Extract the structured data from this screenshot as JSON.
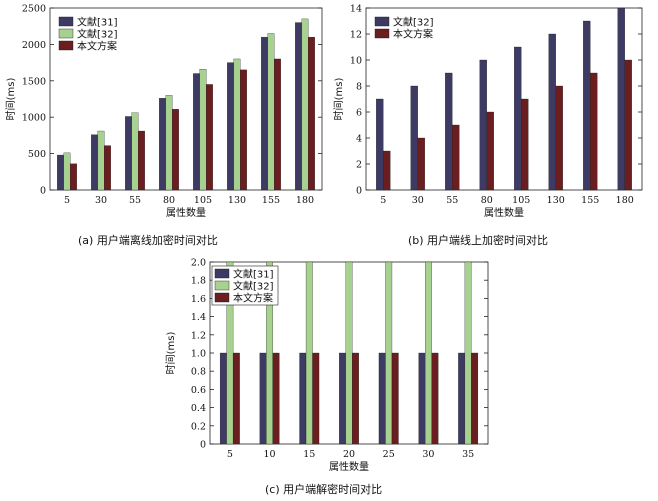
{
  "colors": {
    "ref31": "#3d3a63",
    "ref32": "#a6d18f",
    "ours": "#6b1e1f"
  },
  "chart_data": [
    {
      "id": "a",
      "type": "bar",
      "caption": "(a) 用户端离线加密时间对比",
      "xlabel": "属性数量",
      "ylabel": "时间(ms)",
      "categories": [
        "5",
        "30",
        "55",
        "80",
        "105",
        "130",
        "155",
        "180"
      ],
      "ylim": [
        0,
        2500
      ],
      "yticks": [
        0,
        500,
        1000,
        1500,
        2000,
        2500
      ],
      "grid": false,
      "legend_position": "top-left",
      "series": [
        {
          "name": "文献[31]",
          "color_key": "ref31",
          "values": [
            480,
            760,
            1010,
            1260,
            1600,
            1750,
            2100,
            2300
          ]
        },
        {
          "name": "文献[32]",
          "color_key": "ref32",
          "values": [
            510,
            810,
            1060,
            1300,
            1660,
            1800,
            2150,
            2350
          ]
        },
        {
          "name": "本文方案",
          "color_key": "ours",
          "values": [
            360,
            610,
            810,
            1110,
            1450,
            1650,
            1800,
            2100
          ]
        }
      ]
    },
    {
      "id": "b",
      "type": "bar",
      "caption": "(b) 用户端线上加密时间对比",
      "xlabel": "属性数量",
      "ylabel": "时间(ms)",
      "categories": [
        "5",
        "30",
        "55",
        "80",
        "105",
        "130",
        "155",
        "180"
      ],
      "ylim": [
        0,
        14
      ],
      "yticks": [
        0,
        2,
        4,
        6,
        8,
        10,
        12,
        14
      ],
      "grid": false,
      "legend_position": "top-left",
      "series": [
        {
          "name": "文献[32]",
          "color_key": "ref31",
          "values": [
            7,
            8,
            9,
            10,
            11,
            12,
            13,
            14
          ]
        },
        {
          "name": "本文方案",
          "color_key": "ours",
          "values": [
            3,
            4,
            5,
            6,
            7,
            8,
            9,
            10
          ]
        }
      ]
    },
    {
      "id": "c",
      "type": "bar",
      "caption": "(c) 用户端解密时间对比",
      "xlabel": "属性数量",
      "ylabel": "时间(ms)",
      "categories": [
        "5",
        "10",
        "15",
        "20",
        "25",
        "30",
        "35"
      ],
      "ylim": [
        0,
        2.0
      ],
      "yticks": [
        0,
        0.2,
        0.4,
        0.6,
        0.8,
        1.0,
        1.2,
        1.4,
        1.6,
        1.8,
        2.0
      ],
      "ytick_labels": [
        "0",
        "0.2",
        "0.4",
        "0.6",
        "0.8",
        "1.0",
        "1.2",
        "1.4",
        "1.6",
        "1.8",
        "2.0"
      ],
      "grid": false,
      "legend_position": "top-left",
      "series": [
        {
          "name": "文献[31]",
          "color_key": "ref31",
          "values": [
            1,
            1,
            1,
            1,
            1,
            1,
            1
          ]
        },
        {
          "name": "文献[32]",
          "color_key": "ref32",
          "values": [
            2.0,
            2.0,
            2.0,
            2.0,
            2.0,
            2.0,
            2.0
          ]
        },
        {
          "name": "本文方案",
          "color_key": "ours",
          "values": [
            1,
            1,
            1,
            1,
            1,
            1,
            1
          ]
        }
      ]
    }
  ]
}
